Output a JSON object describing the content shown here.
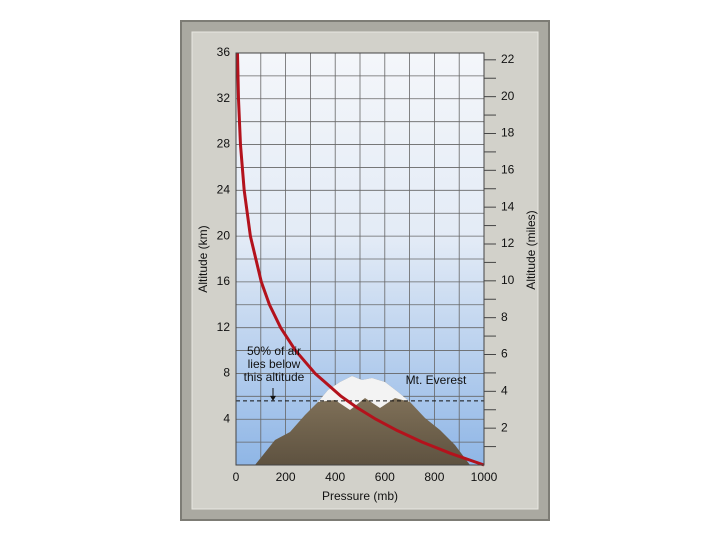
{
  "chart_data": {
    "type": "line",
    "x_label": "Pressure (mb)",
    "y_label": "Altitude (km)",
    "y2_label": "Altitude (miles)",
    "x": [
      6,
      10,
      18,
      33,
      58,
      102,
      135,
      180,
      240,
      319,
      424,
      489,
      564,
      651,
      751,
      867,
      1000
    ],
    "series": [
      {
        "color": "#b3121c",
        "values": [
          36,
          32,
          28,
          24,
          20,
          16,
          14,
          12,
          10,
          8,
          6,
          5,
          4,
          3,
          2,
          1,
          0
        ]
      }
    ],
    "xlim": [
      0,
      1000
    ],
    "xticks": [
      0,
      200,
      400,
      600,
      800,
      1000
    ],
    "ylim": [
      0,
      36
    ],
    "yticks": [
      4,
      8,
      12,
      16,
      20,
      24,
      28,
      32,
      36
    ],
    "y2lim": [
      0,
      22.37
    ],
    "y2ticks": [
      2,
      4,
      6,
      8,
      10,
      12,
      14,
      16,
      18,
      20,
      22
    ],
    "grid": true,
    "hline": 5.6,
    "annotations": [
      "50% of air",
      "lies below",
      "this altitude",
      "Mt. Everest"
    ]
  }
}
